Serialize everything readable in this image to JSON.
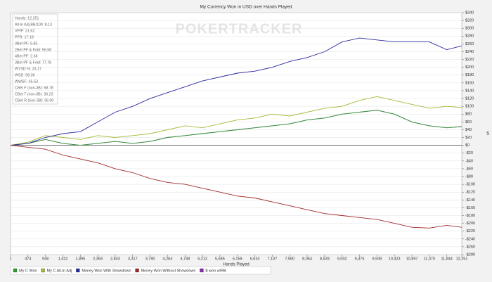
{
  "chart_data": {
    "type": "line",
    "title": "My Currency Won in USD over Hands Played",
    "watermark": "POKERTRACKER",
    "x_label": "Hands Played",
    "y_label": "$",
    "stats": [
      "Hands: 12,251",
      "All-In Adj BB/100: 8.13",
      "VPIP: 21.62",
      "PFR: 17.18",
      "3Bet PF: 5.85",
      "2Bet PF & Fold: 55.58",
      "4Bet PF: 2.38",
      "3Bet PF & Fold: 77.78",
      "WTSD %: 23.17",
      "WSD: 58.36",
      "WWSF: 45.53",
      "CBet F (non-3B): 68.78",
      "CBet T (non-3B): 30.23",
      "CBet R (non-3B): 36.00"
    ],
    "x": [
      1,
      474,
      948,
      1422,
      1895,
      2369,
      2843,
      3317,
      3790,
      4264,
      4738,
      5212,
      5685,
      6159,
      6633,
      7107,
      7580,
      8054,
      8528,
      9002,
      9475,
      9949,
      10423,
      10897,
      11370,
      11844,
      12251
    ],
    "series": [
      {
        "name": "$ won w/RB",
        "color": "#8a2aa8",
        "values": [
          0,
          5,
          15,
          5,
          0,
          5,
          10,
          5,
          10,
          20,
          25,
          30,
          35,
          40,
          45,
          50,
          55,
          65,
          70,
          80,
          85,
          90,
          80,
          60,
          50,
          45,
          48
        ]
      },
      {
        "name": "My C Won",
        "color": "#2e9e2e",
        "values": [
          0,
          5,
          15,
          5,
          0,
          5,
          10,
          5,
          10,
          20,
          25,
          30,
          35,
          40,
          45,
          50,
          55,
          65,
          70,
          80,
          85,
          90,
          80,
          60,
          50,
          45,
          48
        ]
      },
      {
        "name": "My C All-In Adj",
        "color": "#a8b838",
        "values": [
          0,
          8,
          25,
          20,
          15,
          25,
          20,
          25,
          30,
          40,
          50,
          45,
          55,
          65,
          70,
          80,
          75,
          85,
          95,
          100,
          115,
          125,
          115,
          105,
          95,
          100,
          97
        ]
      },
      {
        "name": "Money Won With Showdown",
        "color": "#2a2aa0",
        "values": [
          0,
          5,
          20,
          30,
          35,
          60,
          85,
          100,
          120,
          135,
          150,
          165,
          175,
          185,
          190,
          200,
          215,
          225,
          240,
          265,
          275,
          270,
          265,
          265,
          265,
          245,
          255
        ]
      },
      {
        "name": "Money Won Without Showdown",
        "color": "#a02a2a",
        "values": [
          0,
          -5,
          -10,
          -25,
          -35,
          -45,
          -60,
          -70,
          -85,
          -95,
          -100,
          -110,
          -120,
          -130,
          -135,
          -145,
          -155,
          -165,
          -175,
          -180,
          -185,
          -190,
          -200,
          -210,
          -212,
          -205,
          -210
        ]
      }
    ],
    "legend_order": [
      1,
      2,
      3,
      4,
      0
    ],
    "xlim": [
      1,
      12251
    ],
    "xticks": [
      1,
      474,
      948,
      {
        "value": 1422,
        "label": "1,422"
      },
      {
        "value": 1895,
        "label": "1,895"
      },
      {
        "value": 2369,
        "label": "2,369"
      },
      {
        "value": 2843,
        "label": "2,843"
      },
      {
        "value": 3317,
        "label": "3,317"
      },
      {
        "value": 3790,
        "label": "3,790"
      },
      {
        "value": 4264,
        "label": "4,264"
      },
      {
        "value": 4738,
        "label": "4,738"
      },
      {
        "value": 5212,
        "label": "5,212"
      },
      {
        "value": 5685,
        "label": "5,685"
      },
      {
        "value": 6159,
        "label": "6,159"
      },
      {
        "value": 6633,
        "label": "6,633"
      },
      {
        "value": 7107,
        "label": "7,107"
      },
      {
        "value": 7580,
        "label": "7,580"
      },
      {
        "value": 8054,
        "label": "8,054"
      },
      {
        "value": 8528,
        "label": "8,528"
      },
      {
        "value": 9002,
        "label": "9,002"
      },
      {
        "value": 9475,
        "label": "9,475"
      },
      {
        "value": 9949,
        "label": "9,949"
      },
      {
        "value": 10423,
        "label": "10,423"
      },
      {
        "value": 10897,
        "label": "10,897"
      },
      {
        "value": 11370,
        "label": "11,370"
      },
      {
        "value": 11844,
        "label": "11,844"
      },
      {
        "value": 12251,
        "label": "12,251"
      }
    ],
    "ylim": [
      -280,
      340
    ],
    "yticks": [
      {
        "value": 340,
        "label": "$340"
      },
      {
        "value": 320,
        "label": "$320"
      },
      {
        "value": 300,
        "label": "$300"
      },
      {
        "value": 280,
        "label": "$280"
      },
      {
        "value": 260,
        "label": "$260"
      },
      {
        "value": 240,
        "label": "$240"
      },
      {
        "value": 220,
        "label": "$220"
      },
      {
        "value": 200,
        "label": "$200"
      },
      {
        "value": 180,
        "label": "$180"
      },
      {
        "value": 160,
        "label": "$160"
      },
      {
        "value": 140,
        "label": "$140"
      },
      {
        "value": 120,
        "label": "$120"
      },
      {
        "value": 100,
        "label": "$100"
      },
      {
        "value": 80,
        "label": "$80"
      },
      {
        "value": 60,
        "label": "$60"
      },
      {
        "value": 40,
        "label": "$40"
      },
      {
        "value": 20,
        "label": "$20"
      },
      {
        "value": 0,
        "label": "$0"
      },
      {
        "value": -20,
        "label": "-$20"
      },
      {
        "value": -40,
        "label": "-$40"
      },
      {
        "value": -60,
        "label": "-$60"
      },
      {
        "value": -80,
        "label": "-$80"
      },
      {
        "value": -100,
        "label": "-$100"
      },
      {
        "value": -120,
        "label": "-$120"
      },
      {
        "value": -140,
        "label": "-$140"
      },
      {
        "value": -160,
        "label": "-$160"
      },
      {
        "value": -180,
        "label": "-$180"
      },
      {
        "value": -200,
        "label": "-$200"
      },
      {
        "value": -220,
        "label": "-$220"
      },
      {
        "value": -240,
        "label": "-$240"
      },
      {
        "value": -260,
        "label": "-$260"
      },
      {
        "value": -280,
        "label": "-$280"
      }
    ],
    "grid": true
  }
}
